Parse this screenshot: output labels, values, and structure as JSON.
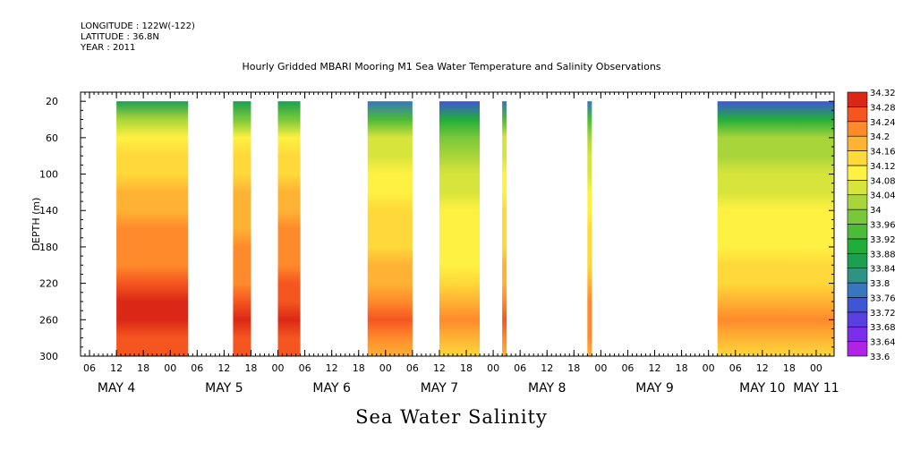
{
  "meta": {
    "longitude": "LONGITUDE : 122W(-122)",
    "latitude": "LATITUDE : 36.8N",
    "year": "YEAR : 2011"
  },
  "chart_data": {
    "type": "heatmap",
    "title": "Hourly Gridded MBARI Mooring M1 Sea Water Temperature and Salinity Observations",
    "footer_label": "Sea Water Salinity",
    "ylabel": "DEPTH (m)",
    "y_ticks": [
      20,
      60,
      100,
      140,
      180,
      220,
      260,
      300
    ],
    "ylim": [
      300,
      10
    ],
    "x_range": [
      "2011-05-04T04:00",
      "2011-05-11T04:00"
    ],
    "x_hour_ticks": [
      {
        "t": "2011-05-04T06:00",
        "label": "06"
      },
      {
        "t": "2011-05-04T12:00",
        "label": "12"
      },
      {
        "t": "2011-05-04T18:00",
        "label": "18"
      },
      {
        "t": "2011-05-05T00:00",
        "label": "00"
      },
      {
        "t": "2011-05-05T06:00",
        "label": "06"
      },
      {
        "t": "2011-05-05T12:00",
        "label": "12"
      },
      {
        "t": "2011-05-05T18:00",
        "label": "18"
      },
      {
        "t": "2011-05-06T00:00",
        "label": "00"
      },
      {
        "t": "2011-05-06T06:00",
        "label": "06"
      },
      {
        "t": "2011-05-06T12:00",
        "label": "12"
      },
      {
        "t": "2011-05-06T18:00",
        "label": "18"
      },
      {
        "t": "2011-05-07T00:00",
        "label": "00"
      },
      {
        "t": "2011-05-07T06:00",
        "label": "06"
      },
      {
        "t": "2011-05-07T12:00",
        "label": "12"
      },
      {
        "t": "2011-05-07T18:00",
        "label": "18"
      },
      {
        "t": "2011-05-08T00:00",
        "label": "00"
      },
      {
        "t": "2011-05-08T06:00",
        "label": "06"
      },
      {
        "t": "2011-05-08T12:00",
        "label": "12"
      },
      {
        "t": "2011-05-08T18:00",
        "label": "18"
      },
      {
        "t": "2011-05-09T00:00",
        "label": "00"
      },
      {
        "t": "2011-05-09T06:00",
        "label": "06"
      },
      {
        "t": "2011-05-09T12:00",
        "label": "12"
      },
      {
        "t": "2011-05-09T18:00",
        "label": "18"
      },
      {
        "t": "2011-05-10T00:00",
        "label": "00"
      },
      {
        "t": "2011-05-10T06:00",
        "label": "06"
      },
      {
        "t": "2011-05-10T12:00",
        "label": "12"
      },
      {
        "t": "2011-05-10T18:00",
        "label": "18"
      },
      {
        "t": "2011-05-11T00:00",
        "label": "00"
      }
    ],
    "x_day_labels": [
      {
        "t": "2011-05-04T12:00",
        "label": "MAY  4"
      },
      {
        "t": "2011-05-05T12:00",
        "label": "MAY  5"
      },
      {
        "t": "2011-05-06T12:00",
        "label": "MAY  6"
      },
      {
        "t": "2011-05-07T12:00",
        "label": "MAY  7"
      },
      {
        "t": "2011-05-08T12:00",
        "label": "MAY  8"
      },
      {
        "t": "2011-05-09T12:00",
        "label": "MAY  9"
      },
      {
        "t": "2011-05-10T12:00",
        "label": "MAY 10"
      },
      {
        "t": "2011-05-11T00:00",
        "label": "MAY 11"
      }
    ],
    "depth_profile": [
      {
        "depth": 20,
        "salinity": 33.82
      },
      {
        "depth": 40,
        "salinity": 33.97
      },
      {
        "depth": 60,
        "salinity": 34.07
      },
      {
        "depth": 80,
        "salinity": 34.1
      },
      {
        "depth": 100,
        "salinity": 34.12
      },
      {
        "depth": 120,
        "salinity": 34.14
      },
      {
        "depth": 140,
        "salinity": 34.16
      },
      {
        "depth": 160,
        "salinity": 34.17
      },
      {
        "depth": 180,
        "salinity": 34.18
      },
      {
        "depth": 200,
        "salinity": 34.19
      },
      {
        "depth": 220,
        "salinity": 34.21
      },
      {
        "depth": 240,
        "salinity": 34.25
      },
      {
        "depth": 260,
        "salinity": 34.27
      },
      {
        "depth": 280,
        "salinity": 34.24
      },
      {
        "depth": 300,
        "salinity": 34.22
      }
    ],
    "data_segments": [
      {
        "start": "2011-05-04T12:00",
        "end": "2011-05-05T04:00",
        "bottom_depth": 300,
        "salinity_offset": 0.04
      },
      {
        "start": "2011-05-05T14:00",
        "end": "2011-05-05T18:00",
        "bottom_depth": 300,
        "salinity_offset": 0.02
      },
      {
        "start": "2011-05-06T00:00",
        "end": "2011-05-06T05:00",
        "bottom_depth": 300,
        "salinity_offset": 0.03
      },
      {
        "start": "2011-05-06T20:00",
        "end": "2011-05-07T06:00",
        "bottom_depth": 300,
        "salinity_offset": -0.02
      },
      {
        "start": "2011-05-07T12:00",
        "end": "2011-05-07T21:00",
        "bottom_depth": 300,
        "salinity_offset": -0.07
      },
      {
        "start": "2011-05-08T02:00",
        "end": "2011-05-08T03:00",
        "bottom_depth": 300,
        "salinity_offset": -0.02
      },
      {
        "start": "2011-05-08T21:00",
        "end": "2011-05-08T22:00",
        "bottom_depth": 300,
        "salinity_offset": -0.04
      },
      {
        "start": "2011-05-10T02:00",
        "end": "2011-05-11T04:00",
        "bottom_depth": 300,
        "salinity_offset": -0.06
      }
    ],
    "colorbar": {
      "min": 33.6,
      "max": 34.32,
      "step": 0.04,
      "labels": [
        "33.6",
        "33.64",
        "33.68",
        "33.72",
        "33.76",
        "33.8",
        "33.84",
        "33.88",
        "33.92",
        "33.96",
        "34",
        "34.04",
        "34.08",
        "34.12",
        "34.16",
        "34.2",
        "34.24",
        "34.28",
        "34.32"
      ],
      "colors": [
        "#b022e6",
        "#7d2eea",
        "#5a3fe3",
        "#3f55d8",
        "#3777bd",
        "#2e9383",
        "#1d9f52",
        "#22ad3a",
        "#4cbb38",
        "#79c839",
        "#a8d53a",
        "#d7e43c",
        "#fff142",
        "#ffd83a",
        "#ffb234",
        "#ff8a2c",
        "#f5561f",
        "#db2816",
        "#b0120f"
      ]
    }
  }
}
